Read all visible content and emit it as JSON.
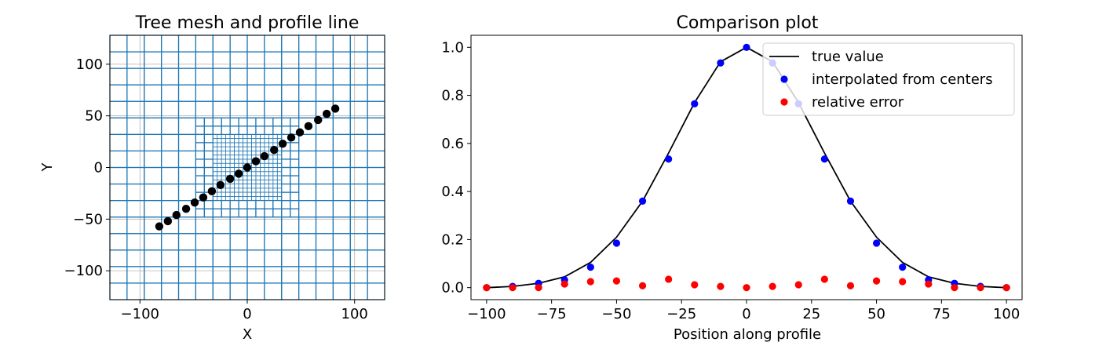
{
  "chart_data": [
    {
      "type": "mesh",
      "title": "Tree mesh and profile line",
      "xlabel": "X",
      "ylabel": "Y",
      "xlim": [
        -128,
        128
      ],
      "ylim": [
        -128,
        128
      ],
      "xticks": [
        -100,
        0,
        100
      ],
      "yticks": [
        -100,
        -50,
        0,
        50,
        100
      ],
      "xtick_labels": [
        "−100",
        "0",
        "100"
      ],
      "ytick_labels": [
        "−100",
        "−50",
        "0",
        "50",
        "100"
      ],
      "mesh_color": "#1f77b4",
      "grid": true,
      "mesh_levels": [
        {
          "cell_size": 32,
          "radius": 128
        },
        {
          "cell_size": 16,
          "radius": 104
        },
        {
          "cell_size": 8,
          "radius": 48
        },
        {
          "cell_size": 4,
          "radius": 28
        }
      ],
      "profile_points": {
        "x": [
          -82,
          -74,
          -66,
          -57,
          -49,
          -41,
          -33,
          -25,
          -16,
          -8,
          0,
          8,
          16,
          25,
          33,
          41,
          49,
          57,
          66,
          74,
          82
        ],
        "y": [
          -57,
          -52,
          -46,
          -40,
          -34,
          -29,
          -23,
          -17,
          -11,
          -6,
          0,
          6,
          11,
          17,
          23,
          29,
          34,
          40,
          46,
          52,
          57
        ],
        "color": "#000000"
      }
    },
    {
      "type": "line+scatter",
      "title": "Comparison plot",
      "xlabel": "Position along profile",
      "ylabel": "",
      "xlim": [
        -106,
        106
      ],
      "ylim": [
        -0.05,
        1.05
      ],
      "xticks": [
        -100,
        -75,
        -50,
        -25,
        0,
        25,
        50,
        75,
        100
      ],
      "yticks": [
        0.0,
        0.2,
        0.4,
        0.6,
        0.8,
        1.0
      ],
      "xtick_labels": [
        "−100",
        "−75",
        "−50",
        "−25",
        "0",
        "25",
        "50",
        "75",
        "100"
      ],
      "ytick_labels": [
        "0.0",
        "0.2",
        "0.4",
        "0.6",
        "0.8",
        "1.0"
      ],
      "legend_position": "top-right",
      "x": [
        -100,
        -90,
        -80,
        -70,
        -60,
        -50,
        -40,
        -30,
        -20,
        -10,
        0,
        10,
        20,
        30,
        40,
        50,
        60,
        70,
        80,
        90,
        100
      ],
      "series": [
        {
          "name": "true value",
          "style": "line",
          "color": "#000000",
          "values": [
            0.0,
            0.005,
            0.018,
            0.045,
            0.105,
            0.21,
            0.36,
            0.56,
            0.77,
            0.94,
            1.0,
            0.94,
            0.77,
            0.56,
            0.36,
            0.21,
            0.105,
            0.045,
            0.018,
            0.005,
            0.0
          ]
        },
        {
          "name": "interpolated from centers",
          "style": "markers",
          "color": "#0000ff",
          "values": [
            0.0,
            0.005,
            0.018,
            0.032,
            0.085,
            0.185,
            0.36,
            0.535,
            0.765,
            0.935,
            1.0,
            0.935,
            0.765,
            0.535,
            0.36,
            0.185,
            0.085,
            0.032,
            0.018,
            0.005,
            0.0
          ]
        },
        {
          "name": "relative error",
          "style": "markers",
          "color": "#ff0000",
          "values": [
            0.0,
            0.0,
            0.0,
            0.015,
            0.025,
            0.028,
            0.008,
            0.035,
            0.012,
            0.005,
            0.0,
            0.005,
            0.012,
            0.035,
            0.008,
            0.028,
            0.025,
            0.015,
            0.0,
            0.0,
            0.0
          ]
        }
      ]
    }
  ]
}
